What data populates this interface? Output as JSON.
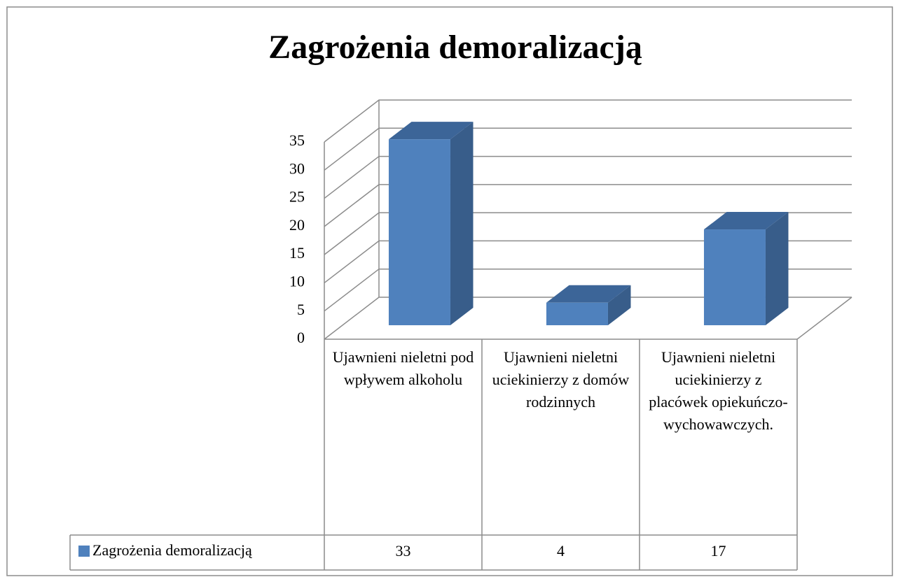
{
  "chart_data": {
    "type": "bar3d",
    "title": "Zagrożenia demoralizacją",
    "categories": [
      "Ujawnieni nieletni pod wpływem alkoholu",
      "Ujawnieni nieletni uciekinierzy z domów rodzinnych",
      "Ujawnieni nieletni uciekinierzy z placówek opiekuńczo-wychowawczych."
    ],
    "series": [
      {
        "name": "Zagrożenia demoralizacją",
        "color": "#4f81bd",
        "values": [
          33,
          4,
          17
        ]
      }
    ],
    "ylim": [
      0,
      35
    ],
    "yticks": [
      0,
      5,
      10,
      15,
      20,
      25,
      30,
      35
    ],
    "grid": true,
    "data_table": true
  }
}
